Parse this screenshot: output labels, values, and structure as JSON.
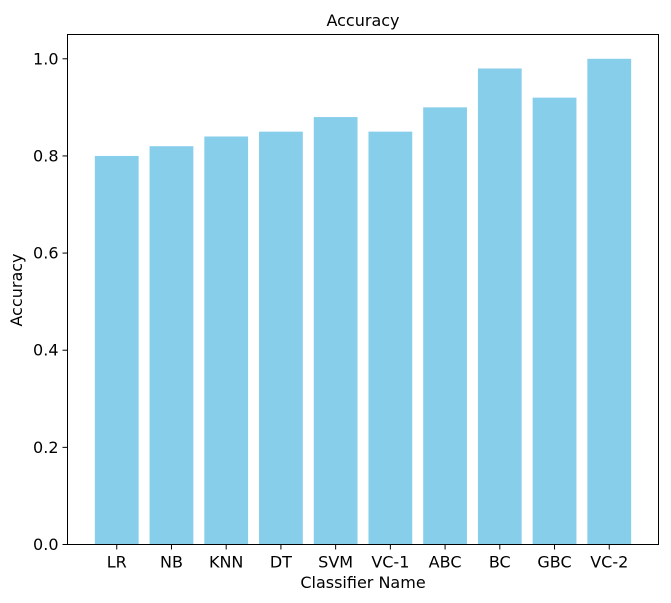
{
  "chart_data": {
    "type": "bar",
    "title": "Accuracy",
    "xlabel": "Classifier Name",
    "ylabel": "Accuracy",
    "categories": [
      "LR",
      "NB",
      "KNN",
      "DT",
      "SVM",
      "VC-1",
      "ABC",
      "BC",
      "GBC",
      "VC-2"
    ],
    "values": [
      0.8,
      0.82,
      0.84,
      0.85,
      0.88,
      0.85,
      0.9,
      0.98,
      0.92,
      1.0
    ],
    "ylim": [
      0,
      1.05
    ],
    "yticks": [
      0.0,
      0.2,
      0.4,
      0.6,
      0.8,
      1.0
    ],
    "ytick_labels": [
      "0.0",
      "0.2",
      "0.4",
      "0.6",
      "0.8",
      "1.0"
    ],
    "bar_color": "#87CEEB",
    "grid": false,
    "legend": false
  }
}
